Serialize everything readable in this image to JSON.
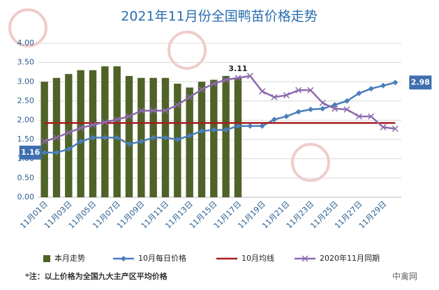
{
  "chart_data": {
    "type": "bar",
    "title": "2021年11月份全国鸭苗价格走势",
    "categories": [
      "11月01日",
      null,
      "11月03日",
      null,
      "11月05日",
      null,
      "11月07日",
      null,
      "11月09日",
      null,
      "11月11日",
      null,
      "11月13日",
      null,
      "11月15日",
      null,
      "11月17日",
      null,
      "11月19日",
      null,
      "11月21日",
      null,
      "11月23日",
      null,
      "11月25日",
      null,
      "11月27日",
      null,
      "11月29日",
      null
    ],
    "series": [
      {
        "name": "本月走势",
        "type": "bar",
        "color": "#4f6228",
        "values": [
          3.0,
          3.1,
          3.2,
          3.3,
          3.3,
          3.4,
          3.4,
          3.15,
          3.1,
          3.1,
          3.1,
          2.95,
          2.85,
          3.0,
          3.05,
          3.15,
          3.11,
          null,
          null,
          null,
          null,
          null,
          null,
          null,
          null,
          null,
          null,
          null,
          null,
          null
        ]
      },
      {
        "name": "10月每日价格",
        "type": "line",
        "marker": "diamond",
        "color": "#4a7ebb",
        "values": [
          1.16,
          1.16,
          1.25,
          1.45,
          1.55,
          1.55,
          1.55,
          1.38,
          1.45,
          1.55,
          1.55,
          1.5,
          1.6,
          1.72,
          1.75,
          1.75,
          1.85,
          1.85,
          1.85,
          2.02,
          2.1,
          2.22,
          2.28,
          2.3,
          2.4,
          2.5,
          2.7,
          2.82,
          2.9,
          2.98
        ]
      },
      {
        "name": "10月均线",
        "type": "line",
        "marker": "none",
        "color": "#a51c1c",
        "values": [
          1.93,
          1.93,
          1.93,
          1.93,
          1.93,
          1.93,
          1.93,
          1.93,
          1.93,
          1.93,
          1.93,
          1.93,
          1.93,
          1.93,
          1.93,
          1.93,
          1.93,
          1.93,
          1.93,
          1.93,
          1.93,
          1.93,
          1.93,
          1.93,
          1.93,
          1.93,
          1.93,
          1.93,
          1.93,
          1.93
        ]
      },
      {
        "name": "2020年11月同期",
        "type": "line",
        "marker": "x",
        "color": "#8c6aae",
        "values": [
          1.45,
          1.55,
          1.68,
          1.8,
          1.88,
          1.95,
          2.02,
          2.1,
          2.25,
          2.25,
          2.25,
          2.4,
          2.6,
          2.8,
          2.95,
          3.05,
          3.1,
          3.15,
          2.75,
          2.6,
          2.65,
          2.78,
          2.78,
          2.45,
          2.3,
          2.28,
          2.1,
          2.1,
          1.82,
          1.78
        ]
      }
    ],
    "labeled_points": [
      {
        "series": 1,
        "index": 0,
        "style": "box"
      },
      {
        "series": 1,
        "index": 29,
        "style": "box"
      },
      {
        "series": 0,
        "index": 16,
        "style": "plain"
      }
    ],
    "ylim": [
      0,
      4
    ],
    "yticks": [
      {
        "value": 0,
        "label": "0.00"
      },
      {
        "value": 0.5,
        "label": "0.50"
      },
      {
        "value": 1,
        "label": "1.00"
      },
      {
        "value": 1.5,
        "label": "1.50"
      },
      {
        "value": 2,
        "label": "2.00"
      },
      {
        "value": 2.5,
        "label": "2.50"
      },
      {
        "value": 3,
        "label": "3.00"
      },
      {
        "value": 3.5,
        "label": "3.50"
      },
      {
        "value": 4,
        "label": "4.00"
      }
    ],
    "grid": true,
    "legend": "bottom",
    "note": "*注：以上价格为全国九大主产区平均价格",
    "source": "中禽网"
  }
}
